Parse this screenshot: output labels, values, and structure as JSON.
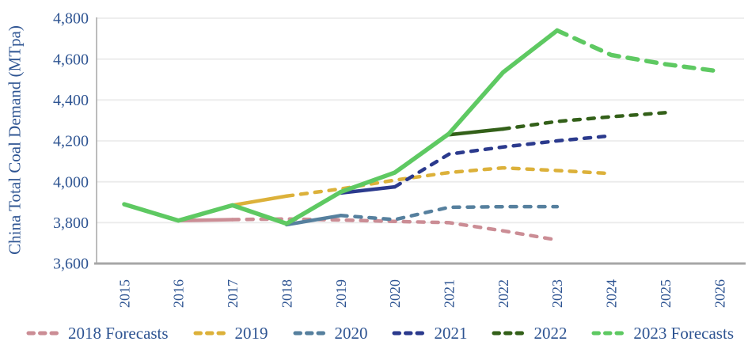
{
  "chart_data": {
    "type": "line",
    "title": "",
    "xlabel": "",
    "ylabel": "China Total Coal Demand (MTpa)",
    "ylim": [
      3600,
      4800
    ],
    "y_tick_step": 200,
    "y_ticks": [
      "3,600",
      "3,800",
      "4,000",
      "4,200",
      "4,400",
      "4,600",
      "4,800"
    ],
    "x_labels": [
      "2015",
      "2016",
      "2017",
      "2018",
      "2019",
      "2020",
      "2021",
      "2022",
      "2023",
      "2024",
      "2025",
      "2026"
    ],
    "xlim": [
      2015,
      2026
    ],
    "grid": "horizontal",
    "legend_position": "bottom",
    "series": [
      {
        "name": "2018 Forecasts",
        "color": "#cb8d95",
        "emphasis": false,
        "history": {
          "x": [
            2016,
            2017
          ],
          "y": [
            3810,
            3815
          ]
        },
        "forecast": {
          "x": [
            2018,
            2019,
            2020,
            2021,
            2022,
            2023
          ],
          "y": [
            3818,
            3813,
            3806,
            3800,
            3760,
            3715
          ]
        }
      },
      {
        "name": "2019",
        "color": "#dcb13a",
        "emphasis": false,
        "history": {
          "x": [
            2017,
            2018
          ],
          "y": [
            3885,
            3930
          ]
        },
        "forecast": {
          "x": [
            2019,
            2020,
            2021,
            2022,
            2023,
            2024
          ],
          "y": [
            3965,
            4008,
            4045,
            4068,
            4055,
            4040
          ]
        }
      },
      {
        "name": "2020",
        "color": "#56809e",
        "emphasis": false,
        "history": {
          "x": [
            2018,
            2019
          ],
          "y": [
            3790,
            3835
          ]
        },
        "forecast": {
          "x": [
            2020,
            2021,
            2022,
            2023
          ],
          "y": [
            3815,
            3875,
            3878,
            3878
          ]
        }
      },
      {
        "name": "2021",
        "color": "#2b3a8d",
        "emphasis": false,
        "history": {
          "x": [
            2019,
            2020
          ],
          "y": [
            3945,
            3975
          ]
        },
        "forecast": {
          "x": [
            2021,
            2022,
            2023,
            2024
          ],
          "y": [
            4135,
            4170,
            4200,
            4225
          ]
        }
      },
      {
        "name": "2022",
        "color": "#336019",
        "emphasis": false,
        "history": {
          "x": [
            2021,
            2022
          ],
          "y": [
            4230,
            4258
          ]
        },
        "forecast": {
          "x": [
            2023,
            2024,
            2025
          ],
          "y": [
            4295,
            4318,
            4338
          ]
        }
      },
      {
        "name": "2023 Forecasts",
        "color": "#5ec962",
        "emphasis": true,
        "history": {
          "x": [
            2015,
            2016,
            2017,
            2018,
            2019,
            2020,
            2021,
            2022,
            2023
          ],
          "y": [
            3890,
            3810,
            3885,
            3795,
            3950,
            4045,
            4235,
            4535,
            4740
          ]
        },
        "forecast": {
          "x": [
            2024,
            2025,
            2026
          ],
          "y": [
            4620,
            4575,
            4540
          ]
        }
      }
    ]
  },
  "colors": {
    "axis_text": "#2e5492",
    "gridline": "#ebebeb",
    "axis_line": "#a6a6a6",
    "background": "#ffffff"
  }
}
